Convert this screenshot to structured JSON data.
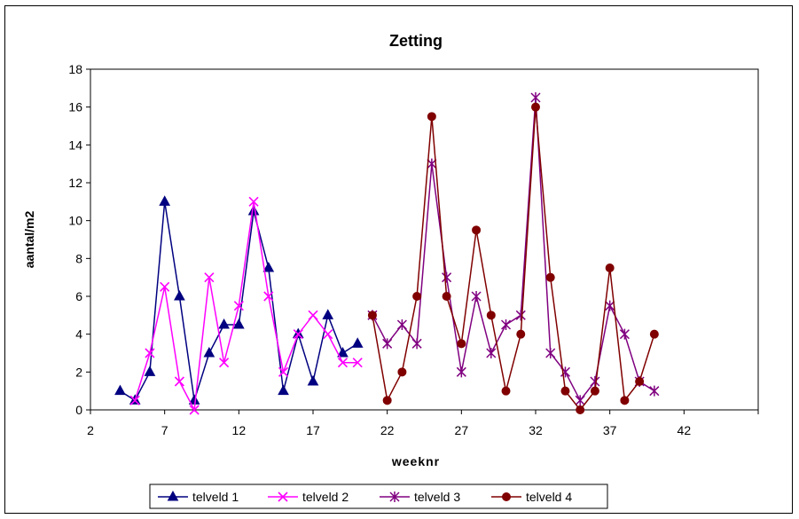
{
  "chart_data": {
    "type": "line",
    "title": "Zetting",
    "xlabel": "weeknr",
    "ylabel": "aantal/m2",
    "xlim": [
      2,
      47
    ],
    "ylim": [
      0,
      18
    ],
    "xticks": [
      2,
      7,
      12,
      17,
      22,
      27,
      32,
      37,
      42
    ],
    "yticks": [
      0,
      2,
      4,
      6,
      8,
      10,
      12,
      14,
      16,
      18
    ],
    "grid": false,
    "legend_position": "bottom",
    "series": [
      {
        "name": "telveld 1",
        "color": "#000080",
        "marker": "triangle",
        "x": [
          4,
          5,
          6,
          7,
          8,
          9,
          10,
          11,
          12,
          13,
          14,
          15,
          16,
          17,
          18,
          19,
          20
        ],
        "y": [
          1,
          0.5,
          2,
          11,
          6,
          0.5,
          3,
          4.5,
          4.5,
          10.5,
          7.5,
          1,
          4,
          1.5,
          5,
          3,
          3.5
        ]
      },
      {
        "name": "telveld 2",
        "color": "#FF00FF",
        "marker": "x",
        "x": [
          5,
          6,
          7,
          8,
          9,
          10,
          11,
          12,
          13,
          14,
          15,
          16,
          17,
          18,
          19,
          20
        ],
        "y": [
          0.5,
          3,
          6.5,
          1.5,
          0,
          7,
          2.5,
          5.5,
          11,
          6,
          2,
          4,
          5,
          4,
          2.5,
          2.5
        ]
      },
      {
        "name": "telveld 3",
        "color": "#800080",
        "marker": "star",
        "x": [
          21,
          22,
          23,
          24,
          25,
          26,
          27,
          28,
          29,
          30,
          31,
          32,
          33,
          34,
          35,
          36,
          37,
          38,
          39,
          40
        ],
        "y": [
          5,
          3.5,
          4.5,
          3.5,
          13,
          7,
          2,
          6,
          3,
          4.5,
          5,
          16.5,
          3,
          2,
          0.5,
          1.5,
          5.5,
          4,
          1.5,
          1
        ]
      },
      {
        "name": "telveld 4",
        "color": "#800000",
        "marker": "circle",
        "x": [
          21,
          22,
          23,
          24,
          25,
          26,
          27,
          28,
          29,
          30,
          31,
          32,
          33,
          34,
          35,
          36,
          37,
          38,
          39,
          40
        ],
        "y": [
          5,
          0.5,
          2,
          6,
          15.5,
          6,
          3.5,
          9.5,
          5,
          1,
          4,
          16,
          7,
          1,
          0,
          1,
          7.5,
          0.5,
          1.5,
          4
        ]
      }
    ]
  }
}
